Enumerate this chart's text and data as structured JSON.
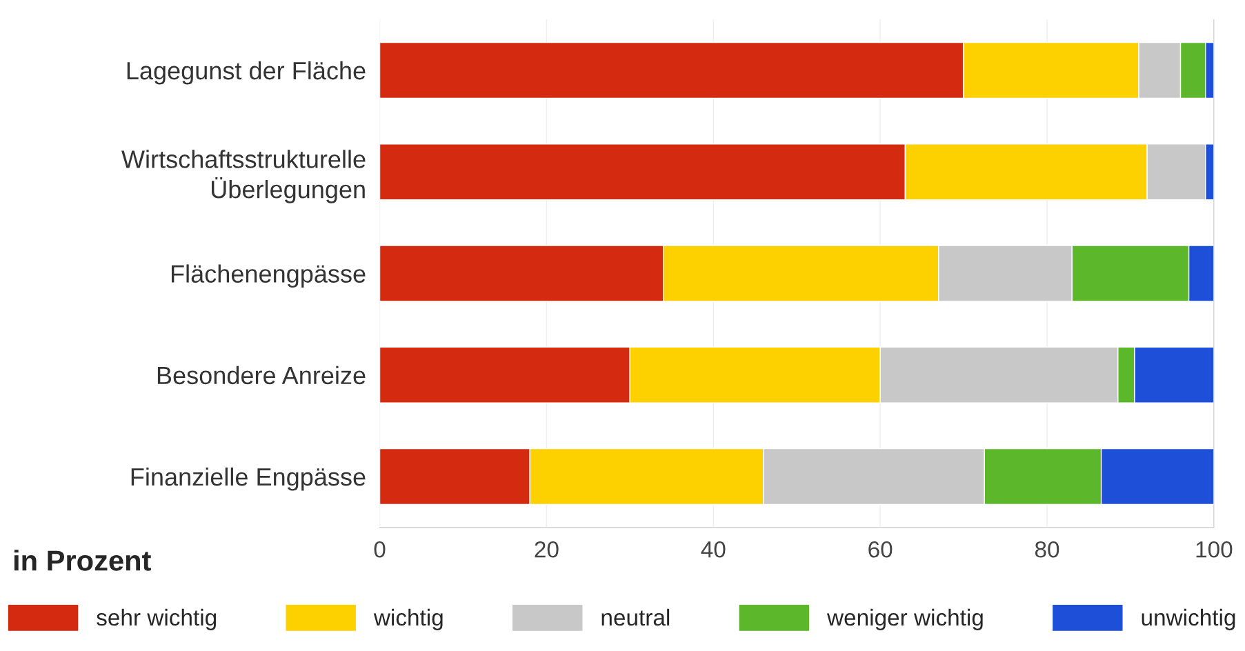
{
  "chart_data": {
    "type": "bar",
    "orientation": "horizontal",
    "stacked": true,
    "categories": [
      "Lagegunst der Fläche",
      "Wirtschaftsstrukturelle\nÜberlegungen",
      "Flächenengpässe",
      "Besondere Anreize",
      "Finanzielle Engpässe"
    ],
    "series": [
      {
        "name": "sehr wichtig",
        "color": "#d42a10",
        "values": [
          70,
          63,
          34,
          30,
          18
        ]
      },
      {
        "name": "wichtig",
        "color": "#fdd000",
        "values": [
          21,
          29,
          33,
          30,
          28
        ]
      },
      {
        "name": "neutral",
        "color": "#c8c8c8",
        "values": [
          5,
          7,
          16,
          28.5,
          26.5
        ]
      },
      {
        "name": "weniger wichtig",
        "color": "#5cb82a",
        "values": [
          3,
          0,
          14,
          2,
          14
        ]
      },
      {
        "name": "unwichtig",
        "color": "#1e4fd8",
        "values": [
          1,
          1,
          3,
          9.5,
          13.5
        ]
      }
    ],
    "annotations": [
      "in Prozent"
    ],
    "xlim": [
      0,
      100
    ],
    "xticks": [
      0,
      20,
      40,
      60,
      80,
      100
    ],
    "grid": "x",
    "legend": "bottom"
  }
}
